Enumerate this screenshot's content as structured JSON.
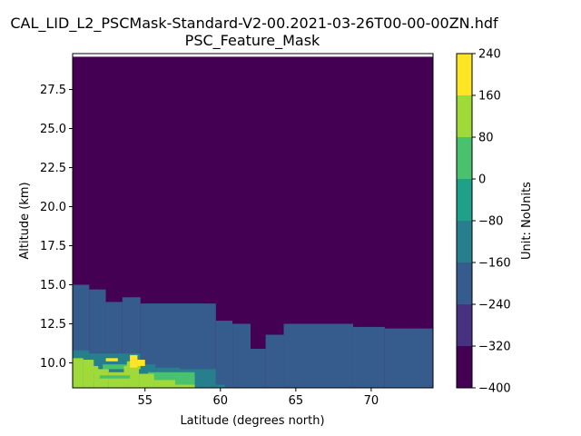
{
  "chart_data": {
    "type": "heatmap",
    "title_line1": "CAL_LID_L2_PSCMask-Standard-V2-00.2021-03-26T00-00-00ZN.hdf",
    "title_line2": "PSC_Feature_Mask",
    "xlabel": "Latitude (degrees north)",
    "ylabel": "Altitude (km)",
    "colorbar_label": "Unit: NoUnits",
    "xlim": [
      50.2,
      74.1
    ],
    "ylim": [
      8.4,
      29.8
    ],
    "x_ticks": [
      55,
      60,
      65,
      70
    ],
    "x_tick_labels": [
      "55",
      "60",
      "65",
      "70"
    ],
    "y_ticks": [
      10.0,
      12.5,
      15.0,
      17.5,
      20.0,
      22.5,
      25.0,
      27.5
    ],
    "y_tick_labels": [
      "10.0",
      "12.5",
      "15.0",
      "17.5",
      "20.0",
      "22.5",
      "25.0",
      "27.5"
    ],
    "colorbar_levels": [
      -400,
      -320,
      -240,
      -160,
      -80,
      0,
      80,
      160,
      240
    ],
    "colorbar_tick_labels": [
      "−400",
      "−320",
      "−240",
      "−160",
      "−80",
      "0",
      "80",
      "160",
      "240"
    ],
    "colorbar_colors": [
      "#440154",
      "#46327e",
      "#365c8d",
      "#277f8e",
      "#1fa187",
      "#4ac16d",
      "#9fda3a",
      "#fde725"
    ],
    "data_top_altitude": 29.6,
    "background_value": -360,
    "regions": [
      {
        "value": -200,
        "x": [
          50.2,
          51.3
        ],
        "y_bottom": 8.4,
        "y_top": 15.0
      },
      {
        "value": -200,
        "x": [
          51.3,
          52.4
        ],
        "y_bottom": 8.4,
        "y_top": 14.7
      },
      {
        "value": -200,
        "x": [
          52.4,
          53.5
        ],
        "y_bottom": 8.4,
        "y_top": 13.9
      },
      {
        "value": -200,
        "x": [
          53.5,
          54.7
        ],
        "y_bottom": 8.4,
        "y_top": 14.2
      },
      {
        "value": -200,
        "x": [
          54.7,
          59.7
        ],
        "y_bottom": 8.4,
        "y_top": 13.8
      },
      {
        "value": -200,
        "x": [
          59.7,
          60.8
        ],
        "y_bottom": 8.4,
        "y_top": 12.7
      },
      {
        "value": -200,
        "x": [
          60.8,
          62.0
        ],
        "y_bottom": 8.4,
        "y_top": 12.5
      },
      {
        "value": -200,
        "x": [
          62.0,
          63.0
        ],
        "y_bottom": 8.4,
        "y_top": 10.9
      },
      {
        "value": -200,
        "x": [
          63.0,
          64.2
        ],
        "y_bottom": 8.4,
        "y_top": 11.8
      },
      {
        "value": -200,
        "x": [
          64.2,
          68.8
        ],
        "y_bottom": 8.4,
        "y_top": 12.5
      },
      {
        "value": -200,
        "x": [
          68.8,
          70.9
        ],
        "y_bottom": 8.4,
        "y_top": 12.3
      },
      {
        "value": -200,
        "x": [
          70.9,
          74.1
        ],
        "y_bottom": 8.4,
        "y_top": 12.2
      },
      {
        "value": -120,
        "x": [
          50.2,
          51.3
        ],
        "y_bottom": 8.4,
        "y_top": 10.8
      },
      {
        "value": -120,
        "x": [
          51.3,
          54.7
        ],
        "y_bottom": 8.4,
        "y_top": 10.6
      },
      {
        "value": -120,
        "x": [
          54.7,
          55.7
        ],
        "y_bottom": 8.4,
        "y_top": 9.9
      },
      {
        "value": -120,
        "x": [
          55.7,
          57.3
        ],
        "y_bottom": 8.4,
        "y_top": 9.7
      },
      {
        "value": -120,
        "x": [
          57.3,
          59.7
        ],
        "y_bottom": 8.4,
        "y_top": 9.6
      },
      {
        "value": -120,
        "x": [
          59.7,
          60.3
        ],
        "y_bottom": 8.4,
        "y_top": 8.6
      },
      {
        "value": -40,
        "x": [
          50.2,
          50.8
        ],
        "y_bottom": 8.4,
        "y_top": 10.1
      },
      {
        "value": 40,
        "x": [
          51.5,
          53.8
        ],
        "y_bottom": 8.8,
        "y_top": 9.1
      },
      {
        "value": 40,
        "x": [
          52.2,
          54.4
        ],
        "y_bottom": 9.6,
        "y_top": 9.9
      },
      {
        "value": 40,
        "x": [
          55.2,
          58.3
        ],
        "y_bottom": 8.4,
        "y_top": 9.4
      },
      {
        "value": 120,
        "x": [
          50.2,
          50.9
        ],
        "y_bottom": 8.4,
        "y_top": 10.3
      },
      {
        "value": 120,
        "x": [
          50.9,
          51.6
        ],
        "y_bottom": 8.4,
        "y_top": 10.2
      },
      {
        "value": 120,
        "x": [
          51.6,
          52.6
        ],
        "y_bottom": 8.4,
        "y_top": 9.6
      },
      {
        "value": 120,
        "x": [
          52.6,
          53.6
        ],
        "y_bottom": 8.4,
        "y_top": 9.4
      },
      {
        "value": 120,
        "x": [
          53.6,
          54.6
        ],
        "y_bottom": 8.4,
        "y_top": 9.8
      },
      {
        "value": 120,
        "x": [
          54.6,
          55.6
        ],
        "y_bottom": 8.4,
        "y_top": 9.3
      },
      {
        "value": 120,
        "x": [
          55.6,
          57.0
        ],
        "y_bottom": 8.4,
        "y_top": 8.9
      },
      {
        "value": 120,
        "x": [
          57.0,
          58.3
        ],
        "y_bottom": 8.4,
        "y_top": 8.6
      },
      {
        "value": 120,
        "x": [
          51.1,
          51.9
        ],
        "y_bottom": 9.3,
        "y_top": 9.8
      },
      {
        "value": 120,
        "x": [
          53.8,
          54.7
        ],
        "y_bottom": 9.6,
        "y_top": 10.1
      },
      {
        "value": 40,
        "x": [
          52.0,
          54.0
        ],
        "y_bottom": 9.0,
        "y_top": 9.2
      },
      {
        "value": 200,
        "x": [
          52.4,
          53.2
        ],
        "y_bottom": 10.1,
        "y_top": 10.3
      },
      {
        "value": 200,
        "x": [
          54.0,
          54.5
        ],
        "y_bottom": 9.7,
        "y_top": 10.5
      },
      {
        "value": 200,
        "x": [
          54.5,
          55.0
        ],
        "y_bottom": 9.8,
        "y_top": 10.2
      }
    ]
  }
}
